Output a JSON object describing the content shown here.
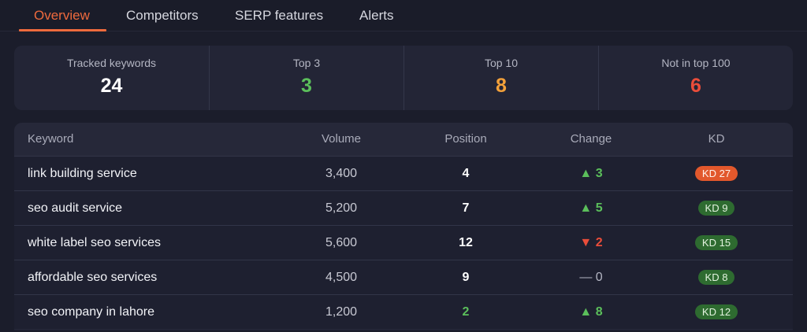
{
  "tabs": [
    "Overview",
    "Competitors",
    "SERP features",
    "Alerts"
  ],
  "stats": [
    {
      "label": "Tracked keywords",
      "value": "24",
      "color": "#ffffff"
    },
    {
      "label": "Top 3",
      "value": "3",
      "color": "#5bbf5b"
    },
    {
      "label": "Top 10",
      "value": "8",
      "color": "#f3a13a"
    },
    {
      "label": "Not in top 100",
      "value": "6",
      "color": "#ea4d3a"
    }
  ],
  "table": {
    "headers": [
      "Keyword",
      "Volume",
      "Position",
      "Change",
      "KD"
    ],
    "rows": [
      {
        "keyword": "link building service",
        "volume": "3,400",
        "position": "4",
        "change": "▲ 3",
        "change_dir": "up",
        "kd": "KD 27",
        "kd_level": "hard"
      },
      {
        "keyword": "seo audit service",
        "volume": "5,200",
        "position": "7",
        "change": "▲ 5",
        "change_dir": "up",
        "kd": "KD 9",
        "kd_level": "easy"
      },
      {
        "keyword": "white label seo services",
        "volume": "5,600",
        "position": "12",
        "change": "▼ 2",
        "change_dir": "down",
        "kd": "KD 15",
        "kd_level": "easy"
      },
      {
        "keyword": "affordable seo services",
        "volume": "4,500",
        "position": "9",
        "change": "— 0",
        "change_dir": "flat",
        "kd": "KD 8",
        "kd_level": "easy"
      },
      {
        "keyword": "seo company in lahore",
        "volume": "1,200",
        "position": "2",
        "change": "▲ 8",
        "change_dir": "up",
        "kd": "KD 12",
        "kd_level": "easy"
      }
    ]
  },
  "colors": {
    "accent": "#ee6a3d",
    "positive": "#5bbf5b",
    "warning": "#f3a13a",
    "negative": "#ea4d3a"
  }
}
